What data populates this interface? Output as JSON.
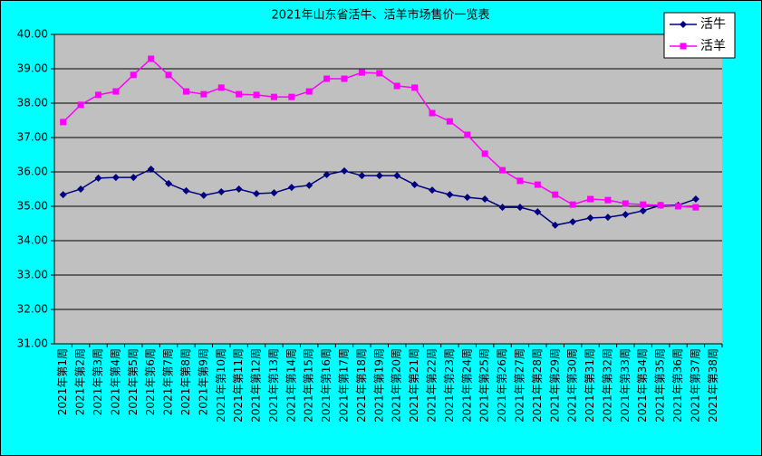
{
  "chart_data": {
    "type": "line",
    "title": "2021年山东省活牛、活羊市场售价一览表",
    "categories": [
      "2021年第1周",
      "2021年第2周",
      "2021年第3周",
      "2021年第4周",
      "2021年第5周",
      "2021年第6周",
      "2021年第7周",
      "2021年第8周",
      "2021年第9周",
      "2021年第10周",
      "2021年第11周",
      "2021年第12周",
      "2021年第13周",
      "2021年第14周",
      "2021年第15周",
      "2021年第16周",
      "2021年第17周",
      "2021年第18周",
      "2021年第19周",
      "2021年第20周",
      "2021年第21周",
      "2021年第22周",
      "2021年第23周",
      "2021年第24周",
      "2021年第25周",
      "2021年第26周",
      "2021年第27周",
      "2021年第28周",
      "2021年第29周",
      "2021年第30周",
      "2021年第31周",
      "2021年第32周",
      "2021年第33周",
      "2021年第34周",
      "2021年第35周",
      "2021年第36周",
      "2021年第37周",
      "2021年第38周"
    ],
    "series": [
      {
        "name": "活牛",
        "color": "#000080",
        "marker": "diamond",
        "values": [
          35.34,
          35.5,
          35.82,
          35.84,
          35.84,
          36.08,
          35.66,
          35.45,
          35.32,
          35.42,
          35.5,
          35.37,
          35.39,
          35.55,
          35.61,
          35.92,
          36.03,
          35.89,
          35.89,
          35.89,
          35.63,
          35.47,
          35.34,
          35.26,
          35.21,
          34.97,
          34.97,
          34.84,
          34.45,
          34.55,
          34.66,
          34.68,
          34.76,
          34.87,
          35.03,
          35.03,
          35.21,
          null
        ]
      },
      {
        "name": "活羊",
        "color": "#ff00ff",
        "marker": "square",
        "values": [
          37.45,
          37.95,
          38.24,
          38.34,
          38.82,
          39.29,
          38.82,
          38.34,
          38.26,
          38.45,
          38.26,
          38.24,
          38.18,
          38.18,
          38.34,
          38.71,
          38.71,
          38.89,
          38.87,
          38.5,
          38.45,
          37.71,
          37.47,
          37.08,
          36.53,
          36.05,
          35.74,
          35.63,
          35.34,
          35.05,
          35.21,
          35.18,
          35.08,
          35.05,
          35.03,
          35.0,
          34.97,
          null
        ]
      }
    ],
    "ylim": [
      31,
      40
    ],
    "yticks": [
      {
        "value": 31,
        "label": "31.00"
      },
      {
        "value": 32,
        "label": "32.00"
      },
      {
        "value": 33,
        "label": "33.00"
      },
      {
        "value": 34,
        "label": "34.00"
      },
      {
        "value": 35,
        "label": "35.00"
      },
      {
        "value": 36,
        "label": "36.00"
      },
      {
        "value": 37,
        "label": "37.00"
      },
      {
        "value": 38,
        "label": "38.00"
      },
      {
        "value": 39,
        "label": "39.00"
      },
      {
        "value": 40,
        "label": "40.00"
      }
    ],
    "grid": true,
    "legend": "top-right"
  }
}
